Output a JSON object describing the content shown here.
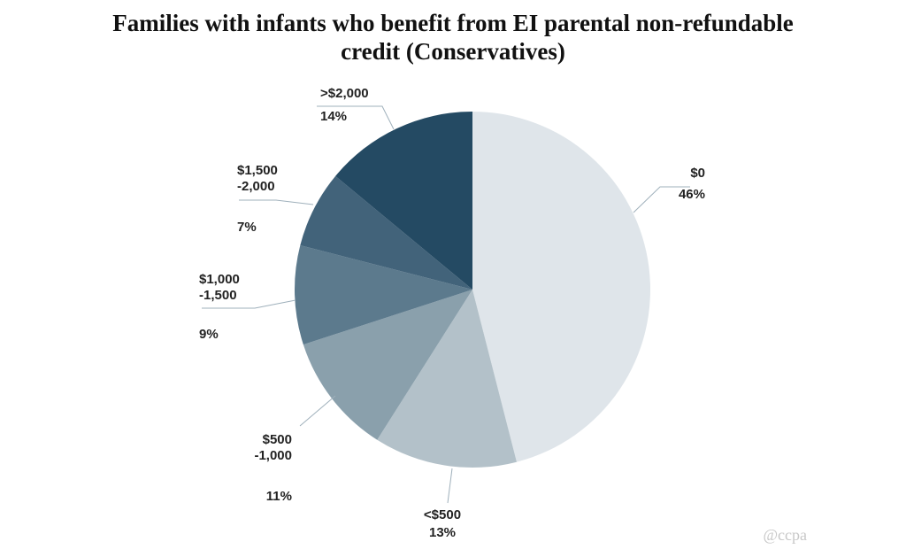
{
  "chart_data": {
    "type": "pie",
    "title_lines": [
      "Families with infants who benefit from EI parental non-refundable",
      "credit (Conservatives)"
    ],
    "slices": [
      {
        "label": [
          "$0"
        ],
        "value": 46,
        "value_label": "46%",
        "color": "#dfe5ea"
      },
      {
        "label": [
          "<$500"
        ],
        "value": 13,
        "value_label": "13%",
        "color": "#b3c1c9"
      },
      {
        "label": [
          "$500",
          "-1,000"
        ],
        "value": 11,
        "value_label": "11%",
        "color": "#8aa0ac"
      },
      {
        "label": [
          "$1,000",
          "-1,500"
        ],
        "value": 9,
        "value_label": "9%",
        "color": "#5c7a8d"
      },
      {
        "label": [
          "$1,500",
          "-2,000"
        ],
        "value": 7,
        "value_label": "7%",
        "color": "#42637a"
      },
      {
        "label": [
          ">$2,000"
        ],
        "value": 14,
        "value_label": "14%",
        "color": "#244a63"
      }
    ],
    "start": "12 o'clock",
    "direction": "clockwise"
  },
  "watermark": "@ccpa"
}
